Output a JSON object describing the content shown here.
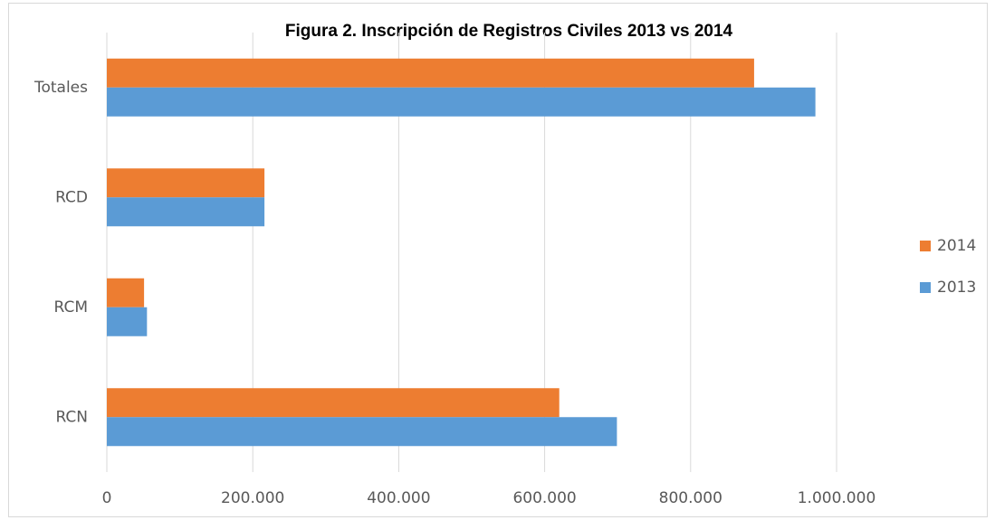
{
  "chart_data": {
    "type": "bar",
    "orientation": "horizontal",
    "title": "Figura 2.   Inscripción de  Registros Civiles  2013 vs 2014",
    "categories": [
      "RCN",
      "RCM",
      "RCD",
      "Totales"
    ],
    "series": [
      {
        "name": "2014",
        "color": "#ed7d31",
        "values": [
          620000,
          51000,
          216000,
          887000
        ]
      },
      {
        "name": "2013",
        "color": "#5b9bd5",
        "values": [
          699000,
          55000,
          216000,
          971000
        ]
      }
    ],
    "xlim": [
      0,
      1000000
    ],
    "xticks": [
      0,
      {
        "value": 200000,
        "label": "200.000"
      },
      {
        "value": 400000,
        "label": "400.000"
      },
      {
        "value": 600000,
        "label": "600.000"
      },
      {
        "value": 800000,
        "label": "800.000"
      },
      {
        "value": 1000000,
        "label": "1.000.000"
      }
    ],
    "grid": true,
    "legend": "right"
  }
}
